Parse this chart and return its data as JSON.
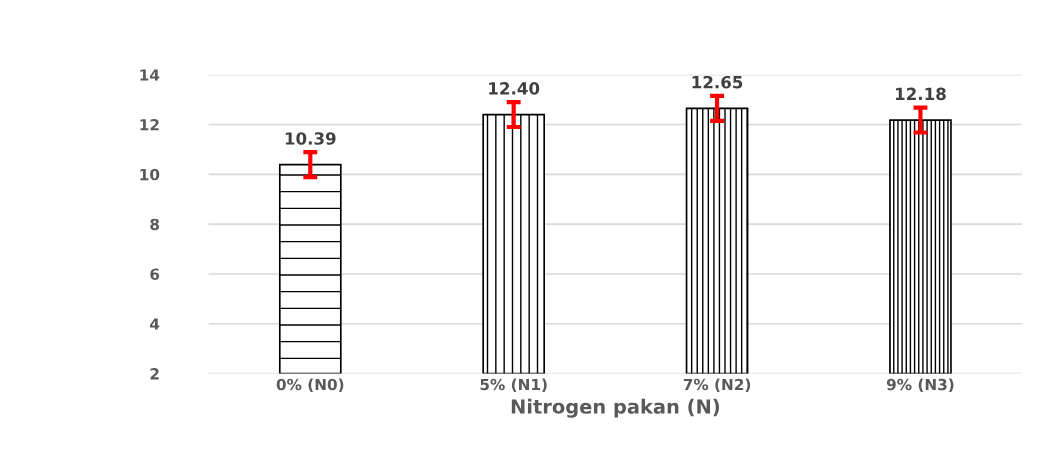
{
  "chart_data": {
    "type": "bar",
    "xlabel": "Nitrogen pakan (N)",
    "categories": [
      "0% (N0)",
      "5% (N1)",
      "7% (N2)",
      "9% (N3)"
    ],
    "values": [
      10.39,
      12.4,
      12.65,
      12.18
    ],
    "value_labels": [
      "10.39",
      "12.40",
      "12.65",
      "12.18"
    ],
    "errors": [
      0.5,
      0.5,
      0.5,
      0.5
    ],
    "colors": [
      "#000000",
      "#000000",
      "#000000",
      "#000000"
    ],
    "ylim": [
      2,
      14
    ],
    "yticks": [
      2,
      4,
      6,
      8,
      10,
      12,
      14
    ],
    "grid": "y",
    "legend": false
  }
}
